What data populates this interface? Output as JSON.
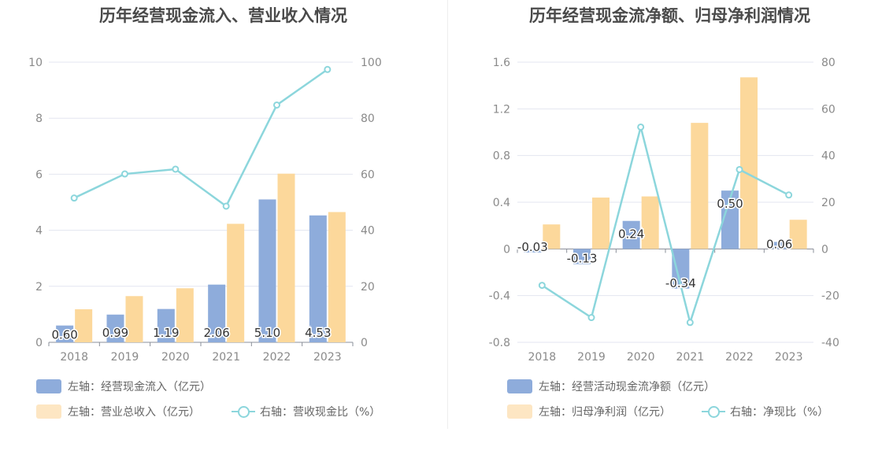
{
  "colors": {
    "bar_primary": "#8eacdb",
    "bar_secondary": "#fcd89b",
    "bar_secondary_legend": "#fde6c3",
    "line": "#8cd6dc",
    "grid": "#e3e6f0",
    "axis_text": "#8a8a8a",
    "title": "#4a4a4a"
  },
  "chart_data": [
    {
      "type": "bar",
      "title": "历年经营现金流入、营业收入情况",
      "categories": [
        "2018",
        "2019",
        "2020",
        "2021",
        "2022",
        "2023"
      ],
      "y_left": {
        "min": 0,
        "max": 10,
        "ticks": [
          "0",
          "2",
          "4",
          "6",
          "8",
          "10"
        ]
      },
      "y_right": {
        "min": 0,
        "max": 100,
        "ticks": [
          "0",
          "20",
          "40",
          "60",
          "80",
          "100"
        ]
      },
      "series": [
        {
          "name": "经营现金流入",
          "kind": "bar",
          "axis": "left",
          "values": [
            0.6,
            0.99,
            1.19,
            2.06,
            5.1,
            4.53
          ],
          "labels": [
            "0.60",
            "0.99",
            "1.19",
            "2.06",
            "5.10",
            "4.53"
          ]
        },
        {
          "name": "营业总收入",
          "kind": "bar",
          "axis": "left",
          "values": [
            1.18,
            1.65,
            1.93,
            4.23,
            6.02,
            4.65
          ]
        },
        {
          "name": "营收现金比",
          "kind": "line",
          "axis": "right",
          "values": [
            51.5,
            60.1,
            61.8,
            48.6,
            84.7,
            97.4
          ]
        }
      ],
      "legend": [
        "左轴：经营现金流入（亿元）",
        "左轴：营业总收入（亿元）",
        "右轴：营收现金比（%）"
      ]
    },
    {
      "type": "bar",
      "title": "历年经营现金流净额、归母净利润情况",
      "categories": [
        "2018",
        "2019",
        "2020",
        "2021",
        "2022",
        "2023"
      ],
      "y_left": {
        "min": -0.8,
        "max": 1.6,
        "ticks": [
          "-0.8",
          "-0.4",
          "0",
          "0.4",
          "0.8",
          "1.2",
          "1.6"
        ]
      },
      "y_right": {
        "min": -40,
        "max": 80,
        "ticks": [
          "-40",
          "-20",
          "0",
          "20",
          "40",
          "60",
          "80"
        ]
      },
      "series": [
        {
          "name": "经营活动现金流净额",
          "kind": "bar",
          "axis": "left",
          "values": [
            -0.03,
            -0.13,
            0.24,
            -0.34,
            0.5,
            0.06
          ],
          "labels": [
            "-0.03",
            "-0.13",
            "0.24",
            "-0.34",
            "0.50",
            "0.06"
          ]
        },
        {
          "name": "归母净利润",
          "kind": "bar",
          "axis": "left",
          "values": [
            0.21,
            0.44,
            0.45,
            1.08,
            1.47,
            0.25
          ]
        },
        {
          "name": "净现比",
          "kind": "line",
          "axis": "right",
          "values": [
            -15.6,
            -29.4,
            52.2,
            -31.5,
            34.0,
            23.1
          ]
        }
      ],
      "legend": [
        "左轴：经营活动现金流净额（亿元）",
        "左轴：归母净利润（亿元）",
        "右轴：净现比（%）"
      ]
    }
  ]
}
